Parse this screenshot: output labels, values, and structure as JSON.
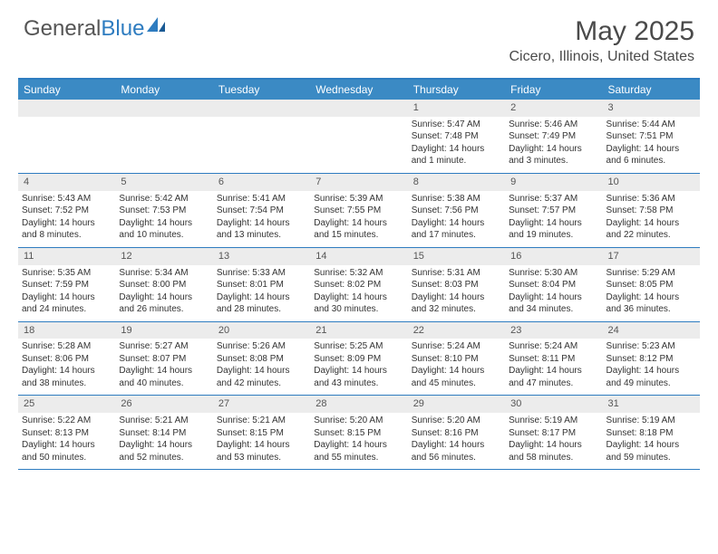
{
  "logo": {
    "part1": "General",
    "part2": "Blue"
  },
  "title": "May 2025",
  "location": "Cicero, Illinois, United States",
  "colors": {
    "header_bg": "#3b8ac4",
    "border": "#2e7cc0",
    "daynum_bg": "#ececec",
    "text": "#333333"
  },
  "dayNames": [
    "Sunday",
    "Monday",
    "Tuesday",
    "Wednesday",
    "Thursday",
    "Friday",
    "Saturday"
  ],
  "weeks": [
    [
      null,
      null,
      null,
      null,
      {
        "n": "1",
        "sr": "Sunrise: 5:47 AM",
        "ss": "Sunset: 7:48 PM",
        "dl": "Daylight: 14 hours and 1 minute."
      },
      {
        "n": "2",
        "sr": "Sunrise: 5:46 AM",
        "ss": "Sunset: 7:49 PM",
        "dl": "Daylight: 14 hours and 3 minutes."
      },
      {
        "n": "3",
        "sr": "Sunrise: 5:44 AM",
        "ss": "Sunset: 7:51 PM",
        "dl": "Daylight: 14 hours and 6 minutes."
      }
    ],
    [
      {
        "n": "4",
        "sr": "Sunrise: 5:43 AM",
        "ss": "Sunset: 7:52 PM",
        "dl": "Daylight: 14 hours and 8 minutes."
      },
      {
        "n": "5",
        "sr": "Sunrise: 5:42 AM",
        "ss": "Sunset: 7:53 PM",
        "dl": "Daylight: 14 hours and 10 minutes."
      },
      {
        "n": "6",
        "sr": "Sunrise: 5:41 AM",
        "ss": "Sunset: 7:54 PM",
        "dl": "Daylight: 14 hours and 13 minutes."
      },
      {
        "n": "7",
        "sr": "Sunrise: 5:39 AM",
        "ss": "Sunset: 7:55 PM",
        "dl": "Daylight: 14 hours and 15 minutes."
      },
      {
        "n": "8",
        "sr": "Sunrise: 5:38 AM",
        "ss": "Sunset: 7:56 PM",
        "dl": "Daylight: 14 hours and 17 minutes."
      },
      {
        "n": "9",
        "sr": "Sunrise: 5:37 AM",
        "ss": "Sunset: 7:57 PM",
        "dl": "Daylight: 14 hours and 19 minutes."
      },
      {
        "n": "10",
        "sr": "Sunrise: 5:36 AM",
        "ss": "Sunset: 7:58 PM",
        "dl": "Daylight: 14 hours and 22 minutes."
      }
    ],
    [
      {
        "n": "11",
        "sr": "Sunrise: 5:35 AM",
        "ss": "Sunset: 7:59 PM",
        "dl": "Daylight: 14 hours and 24 minutes."
      },
      {
        "n": "12",
        "sr": "Sunrise: 5:34 AM",
        "ss": "Sunset: 8:00 PM",
        "dl": "Daylight: 14 hours and 26 minutes."
      },
      {
        "n": "13",
        "sr": "Sunrise: 5:33 AM",
        "ss": "Sunset: 8:01 PM",
        "dl": "Daylight: 14 hours and 28 minutes."
      },
      {
        "n": "14",
        "sr": "Sunrise: 5:32 AM",
        "ss": "Sunset: 8:02 PM",
        "dl": "Daylight: 14 hours and 30 minutes."
      },
      {
        "n": "15",
        "sr": "Sunrise: 5:31 AM",
        "ss": "Sunset: 8:03 PM",
        "dl": "Daylight: 14 hours and 32 minutes."
      },
      {
        "n": "16",
        "sr": "Sunrise: 5:30 AM",
        "ss": "Sunset: 8:04 PM",
        "dl": "Daylight: 14 hours and 34 minutes."
      },
      {
        "n": "17",
        "sr": "Sunrise: 5:29 AM",
        "ss": "Sunset: 8:05 PM",
        "dl": "Daylight: 14 hours and 36 minutes."
      }
    ],
    [
      {
        "n": "18",
        "sr": "Sunrise: 5:28 AM",
        "ss": "Sunset: 8:06 PM",
        "dl": "Daylight: 14 hours and 38 minutes."
      },
      {
        "n": "19",
        "sr": "Sunrise: 5:27 AM",
        "ss": "Sunset: 8:07 PM",
        "dl": "Daylight: 14 hours and 40 minutes."
      },
      {
        "n": "20",
        "sr": "Sunrise: 5:26 AM",
        "ss": "Sunset: 8:08 PM",
        "dl": "Daylight: 14 hours and 42 minutes."
      },
      {
        "n": "21",
        "sr": "Sunrise: 5:25 AM",
        "ss": "Sunset: 8:09 PM",
        "dl": "Daylight: 14 hours and 43 minutes."
      },
      {
        "n": "22",
        "sr": "Sunrise: 5:24 AM",
        "ss": "Sunset: 8:10 PM",
        "dl": "Daylight: 14 hours and 45 minutes."
      },
      {
        "n": "23",
        "sr": "Sunrise: 5:24 AM",
        "ss": "Sunset: 8:11 PM",
        "dl": "Daylight: 14 hours and 47 minutes."
      },
      {
        "n": "24",
        "sr": "Sunrise: 5:23 AM",
        "ss": "Sunset: 8:12 PM",
        "dl": "Daylight: 14 hours and 49 minutes."
      }
    ],
    [
      {
        "n": "25",
        "sr": "Sunrise: 5:22 AM",
        "ss": "Sunset: 8:13 PM",
        "dl": "Daylight: 14 hours and 50 minutes."
      },
      {
        "n": "26",
        "sr": "Sunrise: 5:21 AM",
        "ss": "Sunset: 8:14 PM",
        "dl": "Daylight: 14 hours and 52 minutes."
      },
      {
        "n": "27",
        "sr": "Sunrise: 5:21 AM",
        "ss": "Sunset: 8:15 PM",
        "dl": "Daylight: 14 hours and 53 minutes."
      },
      {
        "n": "28",
        "sr": "Sunrise: 5:20 AM",
        "ss": "Sunset: 8:15 PM",
        "dl": "Daylight: 14 hours and 55 minutes."
      },
      {
        "n": "29",
        "sr": "Sunrise: 5:20 AM",
        "ss": "Sunset: 8:16 PM",
        "dl": "Daylight: 14 hours and 56 minutes."
      },
      {
        "n": "30",
        "sr": "Sunrise: 5:19 AM",
        "ss": "Sunset: 8:17 PM",
        "dl": "Daylight: 14 hours and 58 minutes."
      },
      {
        "n": "31",
        "sr": "Sunrise: 5:19 AM",
        "ss": "Sunset: 8:18 PM",
        "dl": "Daylight: 14 hours and 59 minutes."
      }
    ]
  ]
}
